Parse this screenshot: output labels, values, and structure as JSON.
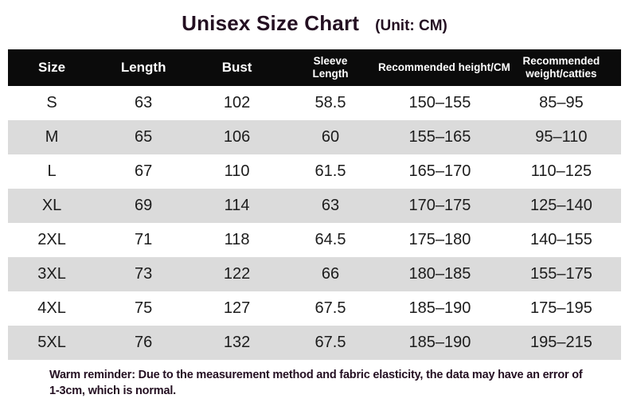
{
  "colors": {
    "header_bg": "#0b0b0b",
    "header_text": "#ffffff",
    "row_alt_bg": "#dbdbdb",
    "title_text": "#241022",
    "body_text": "#1c1c1c",
    "page_bg": "#ffffff"
  },
  "chart_data": {
    "type": "table",
    "title": "Unisex Size Chart",
    "unit_label": "(Unit: CM)",
    "columns": [
      "Size",
      "Length",
      "Bust",
      "Sleeve Length",
      "Recommended height/CM",
      "Recommended weight/catties"
    ],
    "rows": [
      [
        "S",
        "63",
        "102",
        "58.5",
        "150–155",
        "85–95"
      ],
      [
        "M",
        "65",
        "106",
        "60",
        "155–165",
        "95–110"
      ],
      [
        "L",
        "67",
        "110",
        "61.5",
        "165–170",
        "110–125"
      ],
      [
        "XL",
        "69",
        "114",
        "63",
        "170–175",
        "125–140"
      ],
      [
        "2XL",
        "71",
        "118",
        "64.5",
        "175–180",
        "140–155"
      ],
      [
        "3XL",
        "73",
        "122",
        "66",
        "180–185",
        "155–175"
      ],
      [
        "4XL",
        "75",
        "127",
        "67.5",
        "185–190",
        "175–195"
      ],
      [
        "5XL",
        "76",
        "132",
        "67.5",
        "185–190",
        "195–215"
      ]
    ],
    "note": "Warm reminder: Due to the measurement method and fabric elasticity, the data may have an error of 1-3cm, which is normal."
  }
}
